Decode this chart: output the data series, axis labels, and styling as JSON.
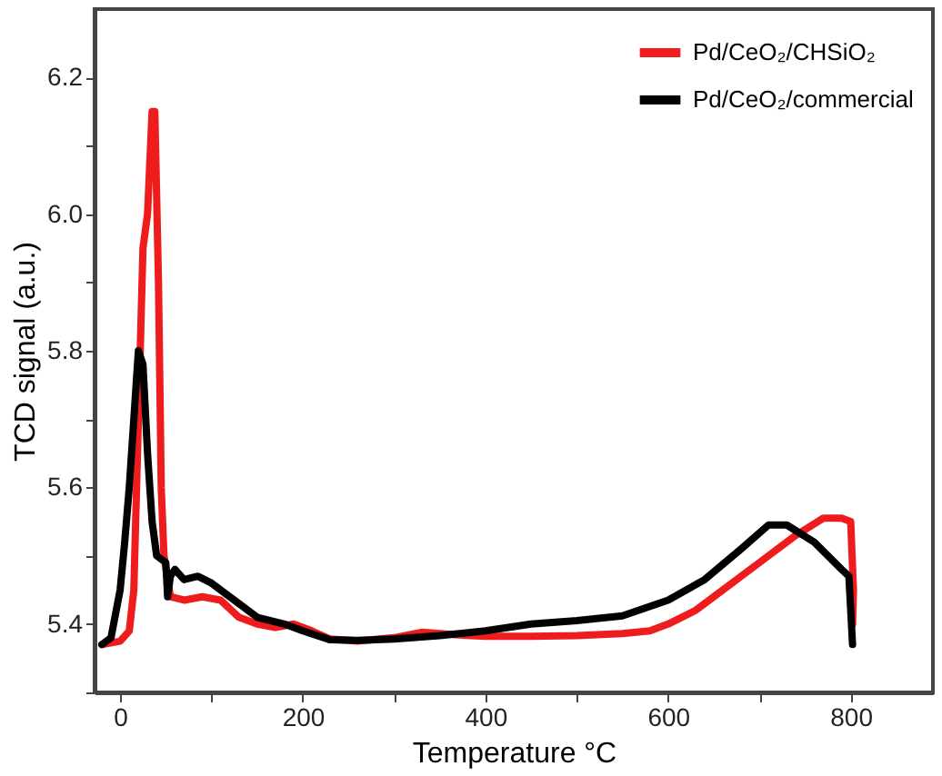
{
  "chart_data": {
    "type": "line",
    "xlabel": "Temperature °C",
    "ylabel": "TCD signal (a.u.)",
    "xlim": [
      -28,
      890
    ],
    "ylim": [
      5.3,
      6.3
    ],
    "xticks": [
      0,
      {
        "value": 100,
        "label": null
      },
      200,
      {
        "value": 300,
        "label": null
      },
      400,
      {
        "value": 500,
        "label": null
      },
      600,
      {
        "value": 700,
        "label": null
      },
      800
    ],
    "yticks": [
      {
        "value": 5.3,
        "label": null
      },
      5.4,
      {
        "value": 5.5,
        "label": null
      },
      5.6,
      {
        "value": 5.7,
        "label": null
      },
      5.8,
      {
        "value": 5.9,
        "label": null
      },
      {
        "value": 6.0,
        "label": "6.0"
      },
      {
        "value": 6.1,
        "label": null
      },
      6.2
    ],
    "grid": false,
    "legend": "top right",
    "line_style": "solid",
    "marker": "none",
    "series": [
      {
        "name": "Pd/CeO₂/CHSiO₂",
        "color": "#ee1c1c",
        "x": [
          -20,
          0,
          10,
          15,
          20,
          25,
          30,
          35,
          38,
          42,
          45,
          48,
          55,
          70,
          90,
          110,
          130,
          150,
          170,
          190,
          210,
          230,
          260,
          300,
          330,
          360,
          400,
          450,
          500,
          550,
          580,
          600,
          630,
          660,
          700,
          740,
          770,
          790,
          800,
          803,
          802
        ],
        "values": [
          5.37,
          5.375,
          5.39,
          5.45,
          5.7,
          5.95,
          6.0,
          6.15,
          6.15,
          5.9,
          5.6,
          5.5,
          5.44,
          5.435,
          5.44,
          5.435,
          5.41,
          5.4,
          5.395,
          5.4,
          5.39,
          5.378,
          5.375,
          5.38,
          5.388,
          5.385,
          5.382,
          5.382,
          5.383,
          5.386,
          5.39,
          5.4,
          5.42,
          5.45,
          5.49,
          5.53,
          5.555,
          5.555,
          5.55,
          5.45,
          5.4
        ]
      },
      {
        "name": "Pd/CeO₂/commercial",
        "color": "#000000",
        "x": [
          -20,
          -10,
          0,
          5,
          10,
          15,
          20,
          25,
          30,
          35,
          40,
          50,
          52,
          55,
          60,
          70,
          85,
          100,
          120,
          150,
          180,
          200,
          230,
          260,
          300,
          350,
          400,
          450,
          500,
          550,
          600,
          640,
          680,
          710,
          730,
          760,
          790,
          798,
          800,
          802
        ],
        "values": [
          5.37,
          5.38,
          5.45,
          5.52,
          5.6,
          5.7,
          5.8,
          5.78,
          5.65,
          5.55,
          5.5,
          5.49,
          5.44,
          5.47,
          5.48,
          5.465,
          5.47,
          5.46,
          5.44,
          5.41,
          5.4,
          5.39,
          5.377,
          5.376,
          5.378,
          5.383,
          5.39,
          5.4,
          5.405,
          5.412,
          5.435,
          5.465,
          5.51,
          5.545,
          5.545,
          5.52,
          5.48,
          5.47,
          5.42,
          5.37
        ]
      }
    ]
  }
}
